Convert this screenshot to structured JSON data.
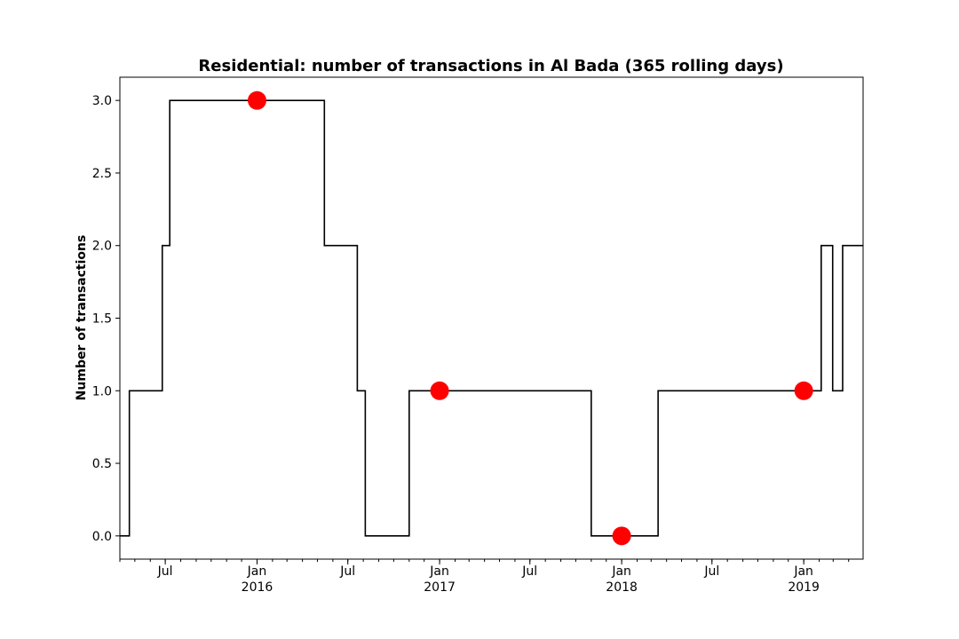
{
  "chart_data": {
    "type": "line",
    "title": "Residential: number of transactions in Al Bada (365 rolling days)",
    "xlabel": "",
    "ylabel": "Number of transactions",
    "xlim": [
      "2015-04-01",
      "2019-04-30"
    ],
    "ylim": [
      -0.16,
      3.16
    ],
    "grid": false,
    "y_ticks": [
      {
        "value": 0.0,
        "label": "0.0"
      },
      {
        "value": 0.5,
        "label": "0.5"
      },
      {
        "value": 1.0,
        "label": "1.0"
      },
      {
        "value": 1.5,
        "label": "1.5"
      },
      {
        "value": 2.0,
        "label": "2.0"
      },
      {
        "value": 2.5,
        "label": "2.5"
      },
      {
        "value": 3.0,
        "label": "3.0"
      }
    ],
    "x_ticks": [
      {
        "date": "2015-07-01",
        "label": "Jul",
        "sublabel": ""
      },
      {
        "date": "2016-01-01",
        "label": "Jan",
        "sublabel": "2016"
      },
      {
        "date": "2016-07-01",
        "label": "Jul",
        "sublabel": ""
      },
      {
        "date": "2017-01-01",
        "label": "Jan",
        "sublabel": "2017"
      },
      {
        "date": "2017-07-01",
        "label": "Jul",
        "sublabel": ""
      },
      {
        "date": "2018-01-01",
        "label": "Jan",
        "sublabel": "2018"
      },
      {
        "date": "2018-07-01",
        "label": "Jul",
        "sublabel": ""
      },
      {
        "date": "2019-01-01",
        "label": "Jan",
        "sublabel": "2019"
      }
    ],
    "series": [
      {
        "color": "#000000",
        "step": "post",
        "points": [
          {
            "x": "2015-04-01",
            "y": 0
          },
          {
            "x": "2015-04-20",
            "y": 1
          },
          {
            "x": "2015-06-25",
            "y": 2
          },
          {
            "x": "2015-07-10",
            "y": 3
          },
          {
            "x": "2016-05-15",
            "y": 2
          },
          {
            "x": "2016-07-20",
            "y": 1
          },
          {
            "x": "2016-08-05",
            "y": 0
          },
          {
            "x": "2016-11-01",
            "y": 1
          },
          {
            "x": "2017-11-01",
            "y": 0
          },
          {
            "x": "2018-03-15",
            "y": 1
          },
          {
            "x": "2019-02-05",
            "y": 2
          },
          {
            "x": "2019-02-28",
            "y": 1
          },
          {
            "x": "2019-03-20",
            "y": 2
          },
          {
            "x": "2019-04-30",
            "y": 2
          }
        ]
      }
    ],
    "markers": {
      "color": "#ff0000",
      "points": [
        {
          "x": "2016-01-01",
          "y": 3
        },
        {
          "x": "2017-01-01",
          "y": 1
        },
        {
          "x": "2018-01-01",
          "y": 0
        },
        {
          "x": "2019-01-01",
          "y": 1
        }
      ]
    }
  }
}
